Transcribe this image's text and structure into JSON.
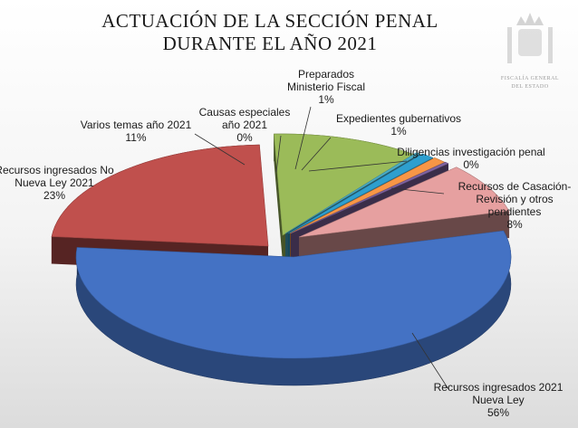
{
  "chart_data": {
    "type": "pie",
    "title_lines": [
      "ACTUACIÓN DE LA SECCIÓN PENAL",
      "DURANTE EL AÑO 2021"
    ],
    "slices": [
      {
        "label_lines": [
          "Recursos ingresados 2021",
          "Nueva Ley",
          "56%"
        ],
        "value": 56,
        "color": "#4472c4"
      },
      {
        "label_lines": [
          "Recursos ingresados No",
          "Nueva Ley 2021",
          "23%"
        ],
        "value": 23,
        "color": "#c0504d"
      },
      {
        "label_lines": [
          "Varios temas año 2021",
          "11%"
        ],
        "value": 11,
        "color": "#9bbb59"
      },
      {
        "label_lines": [
          "Causas especiales",
          "año 2021",
          "0%"
        ],
        "value": 0.3,
        "color": "#4bacc6"
      },
      {
        "label_lines": [
          "Preparados",
          "Ministerio Fiscal",
          "1%"
        ],
        "value": 1,
        "color": "#2e9fcf"
      },
      {
        "label_lines": [
          "Expedientes gubernativos",
          "1%"
        ],
        "value": 1,
        "color": "#f79646"
      },
      {
        "label_lines": [
          "Diligencias investigación penal",
          "0%"
        ],
        "value": 0.3,
        "color": "#8064a2"
      },
      {
        "label_lines": [
          "Recursos de Casación-",
          "Revisión y otros",
          "pendientes",
          "8%"
        ],
        "value": 8,
        "color": "#e6a0a0"
      }
    ],
    "legend": "none",
    "style": "3d-exploded"
  },
  "emblem": {
    "lines": [
      "FISCALÍA GENERAL",
      "DEL ESTADO"
    ]
  }
}
